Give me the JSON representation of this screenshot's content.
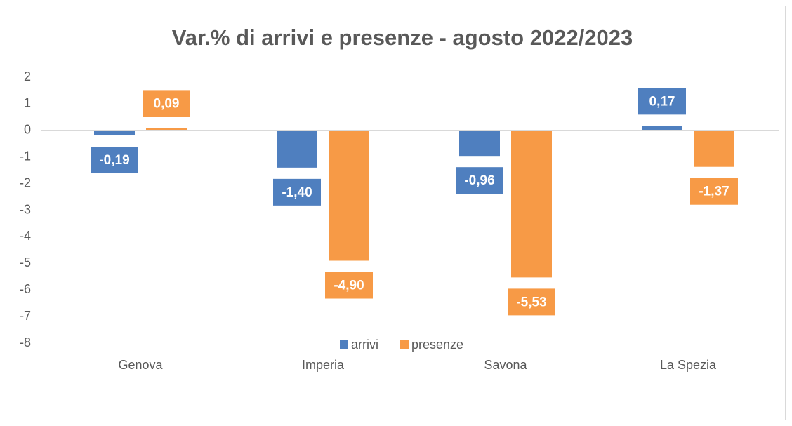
{
  "chart_data": {
    "type": "bar",
    "title": "Var.% di arrivi e presenze - agosto 2022/2023",
    "categories": [
      "Genova",
      "Imperia",
      "Savona",
      "La Spezia"
    ],
    "series": [
      {
        "name": "arrivi",
        "color": "#4f7fbf",
        "values": [
          -0.19,
          -1.4,
          -0.96,
          0.17
        ],
        "value_labels": [
          "-0,19",
          "-1,40",
          "-0,96",
          "0,17"
        ]
      },
      {
        "name": "presenze",
        "color": "#f79a46",
        "values": [
          0.09,
          -4.9,
          -5.53,
          -1.37
        ],
        "value_labels": [
          "0,09",
          "-4,90",
          "-5,53",
          "-1,37"
        ]
      }
    ],
    "ylim": [
      -8,
      2
    ],
    "yticks": [
      2,
      1,
      0,
      -1,
      -2,
      -3,
      -4,
      -5,
      -6,
      -7,
      -8
    ],
    "grid": false,
    "legend": "bottom"
  }
}
